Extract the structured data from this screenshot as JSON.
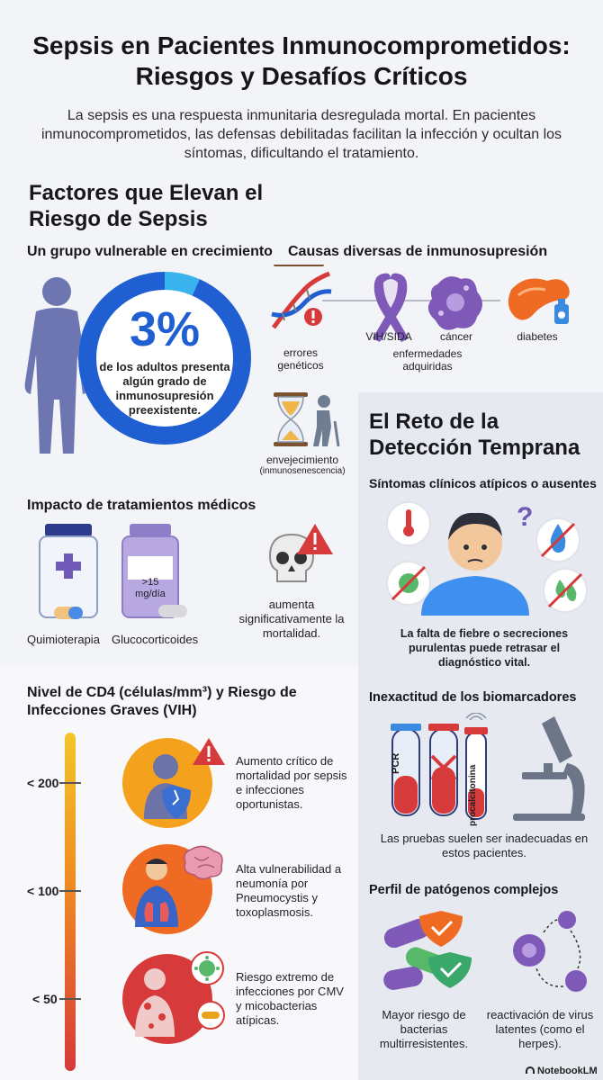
{
  "header": {
    "title": "Sepsis en Pacientes Inmunocomprometidos: Riesgos y Desafíos Críticos",
    "intro": "La sepsis es una respuesta inmunitaria desregulada mortal. En pacientes inmunocomprometidos, las defensas debilitadas facilitan la infección y ocultan los síntomas, dificultando el tratamiento."
  },
  "risk_factors": {
    "heading": "Factores que Elevan el Riesgo de Sepsis",
    "vulnerable": {
      "title": "Un grupo vulnerable en crecimiento",
      "percent_text": "3%",
      "percent_value": 3,
      "description": "de los adultos presenta algún grado de inmunosupresión preexistente."
    },
    "causes": {
      "title": "Causas diversas de inmunosupresión",
      "items": [
        {
          "label": "errores genéticos",
          "icon": "dna-icon"
        },
        {
          "label": "VIH/SIDA",
          "icon": "ribbon-icon"
        },
        {
          "label": "cáncer",
          "icon": "cancer-cell-icon"
        },
        {
          "label": "diabetes",
          "icon": "pancreas-icon"
        },
        {
          "label": "envejecimiento",
          "sublabel": "(inmunosenescencia)",
          "icon": "hourglass-icon"
        }
      ],
      "group_label": "enfermedades adquiridas"
    },
    "treatments": {
      "title": "Impacto de tratamientos médicos",
      "items": [
        {
          "label": "Quimioterapia",
          "icon": "pill-bottle-cross-icon"
        },
        {
          "label": "Glucocorticoides",
          "icon": "pill-bottle-icon",
          "bottle_text": ">15 mg/día"
        }
      ],
      "outcome": "aumenta significativamente la mortalidad."
    }
  },
  "cd4": {
    "title": "Nivel de CD4 (células/mm³) y Riesgo de Infecciones Graves (VIH)",
    "levels": [
      {
        "threshold": "< 200",
        "text": "Aumento crítico de mortalidad por sepsis e infecciones oportunistas.",
        "color": "#f4a11d"
      },
      {
        "threshold": "< 100",
        "text": "Alta vulnerabilidad a neumonía por Pneumocystis y toxoplasmosis.",
        "color": "#ef6a22"
      },
      {
        "threshold": "< 50",
        "text": "Riesgo extremo de infecciones por CMV y micobacterias atípicas.",
        "color": "#d63a3a"
      }
    ]
  },
  "detection": {
    "heading": "El Reto de la Detección Temprana",
    "symptoms": {
      "title": "Síntomas clínicos atípicos o ausentes",
      "text": "La falta de fiebre o secreciones purulentas puede retrasar el diagnóstico vital."
    },
    "biomarkers": {
      "title": "Inexactitud de los biomarcadores",
      "tube1": "PCR",
      "tube2": "procalcitonina",
      "text": "Las pruebas suelen ser inadecuadas en estos pacientes."
    },
    "pathogens": {
      "title": "Perfil de patógenos complejos",
      "left_text": "Mayor riesgo de bacterias multirresistentes.",
      "right_text": "reactivación de virus latentes (como el herpes)."
    }
  },
  "brand": "NotebookLM",
  "colors": {
    "blue": "#1f5fd1",
    "light_blue": "#39b3ee",
    "purple": "#7e59b8",
    "navy": "#5f6ba7",
    "orange": "#ef6a22",
    "red": "#d63a3a",
    "yellow": "#f2c628"
  }
}
